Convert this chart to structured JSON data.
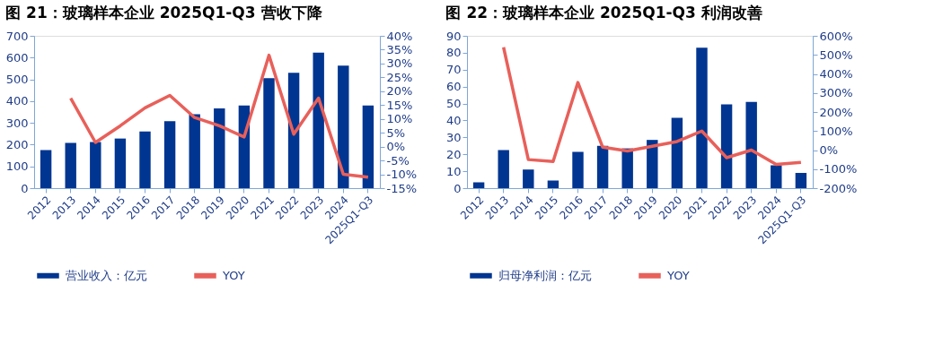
{
  "chart_data": [
    {
      "type": "bar",
      "title": "图 21：玻璃样本企业 2025Q1-Q3 营收下降",
      "categories": [
        "2012",
        "2013",
        "2014",
        "2015",
        "2016",
        "2017",
        "2018",
        "2019",
        "2020",
        "2021",
        "2022",
        "2023",
        "2024",
        "2025Q1-Q3"
      ],
      "series": [
        {
          "name": "营业收入：亿元",
          "color": "#003591",
          "values": [
            175,
            208,
            212,
            228,
            260,
            308,
            340,
            366,
            380,
            505,
            530,
            623,
            563,
            380
          ]
        },
        {
          "name": "YOY",
          "type": "line",
          "axis": "y2",
          "color": "#e8605a",
          "values": [
            null,
            17.5,
            1.5,
            7.5,
            14,
            18.5,
            10.5,
            7.5,
            3.5,
            33,
            4.5,
            17.5,
            -10,
            -11
          ]
        }
      ],
      "ylim": [
        0,
        700
      ],
      "yticks": [
        0,
        100,
        200,
        300,
        400,
        500,
        600,
        700
      ],
      "y2lim": [
        -15,
        40
      ],
      "y2ticks": [
        {
          "value": -15,
          "label": "-15%"
        },
        {
          "value": -10,
          "label": "-10%"
        },
        {
          "value": -5,
          "label": "-5%"
        },
        {
          "value": 0,
          "label": "0%"
        },
        {
          "value": 5,
          "label": "5%"
        },
        {
          "value": 10,
          "label": "10%"
        },
        {
          "value": 15,
          "label": "15%"
        },
        {
          "value": 20,
          "label": "20%"
        },
        {
          "value": 25,
          "label": "25%"
        },
        {
          "value": 30,
          "label": "30%"
        },
        {
          "value": 35,
          "label": "35%"
        },
        {
          "value": 40,
          "label": "40%"
        }
      ],
      "grid": false,
      "legend": "bottom"
    },
    {
      "type": "bar",
      "title": "图 22：玻璃样本企业 2025Q1-Q3 利润改善",
      "categories": [
        "2012",
        "2013",
        "2014",
        "2015",
        "2016",
        "2017",
        "2018",
        "2019",
        "2020",
        "2021",
        "2022",
        "2023",
        "2024",
        "2025Q1-Q3"
      ],
      "series": [
        {
          "name": "归母净利润：亿元",
          "color": "#003591",
          "values": [
            3.5,
            22.5,
            11,
            4.5,
            21.5,
            25,
            23.5,
            28.5,
            41.5,
            83,
            49.5,
            51,
            13.5,
            9
          ]
        },
        {
          "name": "YOY",
          "type": "line",
          "axis": "y2",
          "color": "#e8605a",
          "values": [
            null,
            540,
            -50,
            -60,
            355,
            15,
            -5,
            20,
            45,
            100,
            -40,
            0,
            -75,
            -65
          ]
        }
      ],
      "ylim": [
        0,
        90
      ],
      "yticks": [
        0,
        10,
        20,
        30,
        40,
        50,
        60,
        70,
        80,
        90
      ],
      "y2lim": [
        -200,
        600
      ],
      "y2ticks": [
        {
          "value": -200,
          "label": "-200%"
        },
        {
          "value": -100,
          "label": "-100%"
        },
        {
          "value": 0,
          "label": "0%"
        },
        {
          "value": 100,
          "label": "100%"
        },
        {
          "value": 200,
          "label": "200%"
        },
        {
          "value": 300,
          "label": "300%"
        },
        {
          "value": 400,
          "label": "400%"
        },
        {
          "value": 500,
          "label": "500%"
        },
        {
          "value": 600,
          "label": "600%"
        }
      ],
      "grid": false,
      "legend": "bottom"
    }
  ]
}
